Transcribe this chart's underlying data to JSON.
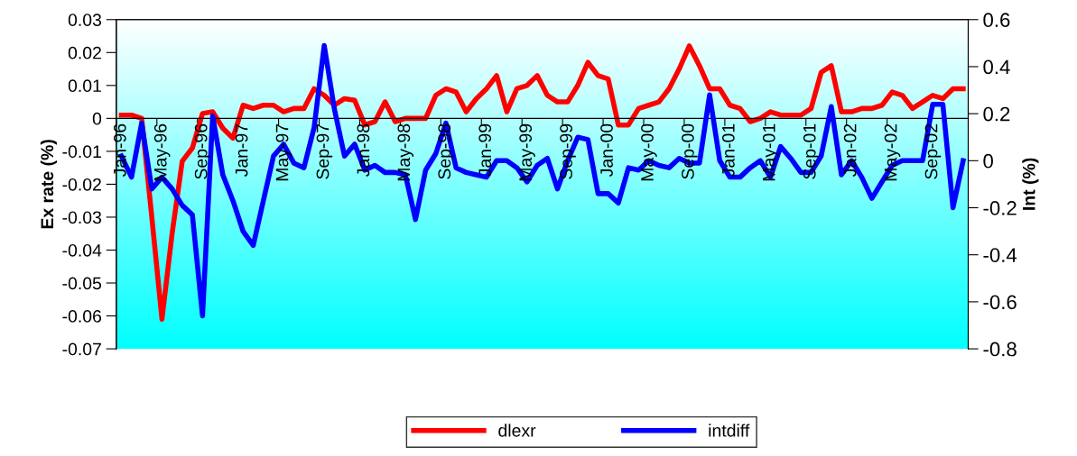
{
  "chart_data": {
    "type": "line",
    "ylabel": "Ex rate (%)",
    "y2label": "Int (%)",
    "categories": [
      "Jan-96",
      null,
      null,
      null,
      "May-96",
      null,
      null,
      null,
      "Sep-96",
      null,
      null,
      null,
      "Jan-97",
      null,
      null,
      null,
      "May-97",
      null,
      null,
      null,
      "Sep-97",
      null,
      null,
      null,
      "Jan-98",
      null,
      null,
      null,
      "May-98",
      null,
      null,
      null,
      "Sep-98",
      null,
      null,
      null,
      "Jan-99",
      null,
      null,
      null,
      "May-99",
      null,
      null,
      null,
      "Sep-99",
      null,
      null,
      null,
      "Jan-00",
      null,
      null,
      null,
      "May-00",
      null,
      null,
      null,
      "Sep-00",
      null,
      null,
      null,
      "Jan-01",
      null,
      null,
      null,
      "May-01",
      null,
      null,
      null,
      "Sep-01",
      null,
      null,
      null,
      "Jan-02",
      null,
      null,
      null,
      "May-02",
      null,
      null,
      null,
      "Sep-02",
      null,
      null,
      null
    ],
    "series": [
      {
        "name": "dlexr",
        "color": "#ff0000",
        "values": [
          0.001,
          0.001,
          0.0,
          -0.03,
          -0.061,
          -0.035,
          -0.013,
          -0.009,
          0.0015,
          0.002,
          -0.003,
          -0.006,
          0.004,
          0.003,
          0.004,
          0.004,
          0.002,
          0.003,
          0.003,
          0.009,
          0.007,
          0.004,
          0.006,
          0.0055,
          -0.002,
          -0.001,
          0.005,
          -0.001,
          0.0,
          0.0,
          0.0,
          0.007,
          0.009,
          0.008,
          0.002,
          0.006,
          0.009,
          0.013,
          0.002,
          0.009,
          0.01,
          0.013,
          0.007,
          0.005,
          0.005,
          0.01,
          0.017,
          0.013,
          0.012,
          -0.002,
          -0.002,
          0.003,
          0.004,
          0.005,
          0.009,
          0.015,
          0.022,
          0.016,
          0.009,
          0.009,
          0.004,
          0.003,
          -0.001,
          0.0,
          0.002,
          0.001,
          0.001,
          0.001,
          0.003,
          0.014,
          0.016,
          0.002,
          0.002,
          0.003,
          0.003,
          0.004,
          0.008,
          0.007,
          0.003,
          0.005,
          0.007,
          0.006,
          0.009,
          0.009
        ]
      },
      {
        "name": "intdiff",
        "color": "#0000ff",
        "axis": "y2",
        "values": [
          0.02,
          -0.07,
          0.16,
          -0.12,
          -0.07,
          -0.12,
          -0.19,
          -0.23,
          -0.66,
          0.19,
          -0.06,
          -0.17,
          -0.3,
          -0.36,
          -0.17,
          0.02,
          0.07,
          -0.01,
          -0.03,
          0.14,
          0.49,
          0.22,
          0.02,
          0.07,
          -0.04,
          -0.02,
          -0.05,
          -0.05,
          -0.06,
          -0.25,
          -0.04,
          0.03,
          0.16,
          -0.03,
          -0.05,
          -0.06,
          -0.07,
          0.0,
          0.0,
          -0.03,
          -0.09,
          -0.02,
          0.01,
          -0.12,
          0.0,
          0.1,
          0.09,
          -0.14,
          -0.14,
          -0.18,
          -0.03,
          -0.04,
          0.0,
          -0.02,
          -0.03,
          0.01,
          -0.01,
          -0.01,
          0.28,
          0.0,
          -0.07,
          -0.07,
          -0.03,
          0.0,
          -0.07,
          0.06,
          0.01,
          -0.05,
          -0.05,
          0.02,
          0.23,
          -0.06,
          0.0,
          -0.07,
          -0.16,
          -0.09,
          -0.02,
          0.0,
          0.0,
          0.0,
          0.24,
          0.24,
          -0.2,
          0.0
        ]
      }
    ],
    "ylim": [
      -0.07,
      0.03
    ],
    "yticks": [
      -0.07,
      -0.06,
      -0.05,
      -0.04,
      -0.03,
      -0.02,
      -0.01,
      0,
      0.01,
      0.02,
      0.03
    ],
    "y2lim": [
      -0.8,
      0.6
    ],
    "y2ticks": [
      {
        "value": -0.8,
        "label": "-0.8"
      },
      {
        "value": -0.6,
        "label": "-0.6"
      },
      {
        "value": -0.4,
        "label": "-0.4"
      },
      {
        "value": -0.2,
        "label": "-0.2"
      },
      0,
      0.2,
      0.4,
      0.6
    ],
    "legend": "bottom",
    "grid": false,
    "marker": "none",
    "line_style": "solid"
  }
}
